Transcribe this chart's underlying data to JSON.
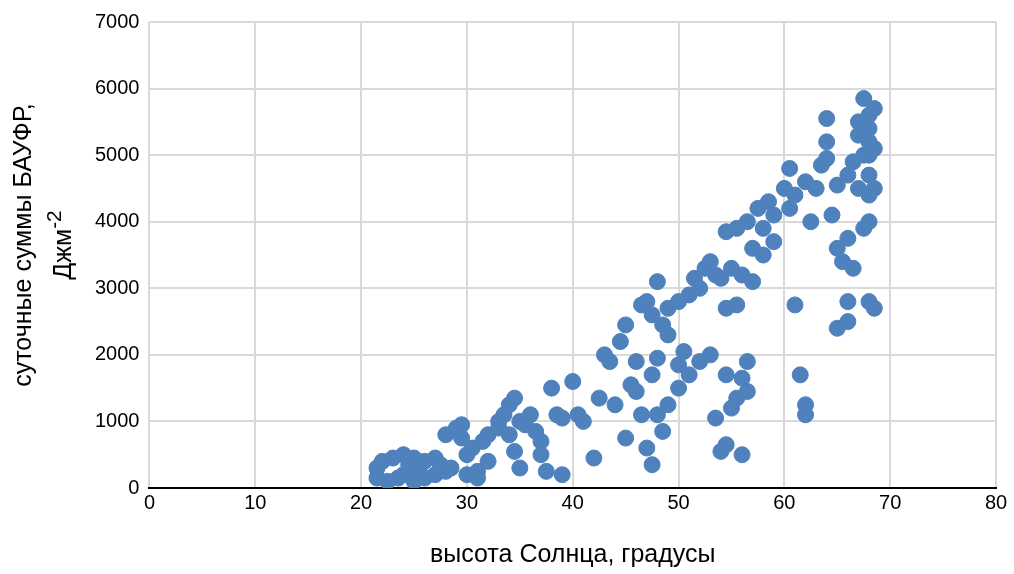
{
  "chart_data": {
    "type": "scatter",
    "xlabel": "высота Солнца, градусы",
    "ylabel": "суточные суммы БАУФР, Джм$^{-2}$",
    "xlim": [
      0,
      80
    ],
    "xticks": [
      0,
      10,
      20,
      30,
      40,
      50,
      60,
      70,
      80
    ],
    "ylim": [
      0,
      7000
    ],
    "yticks": [
      0,
      1000,
      2000,
      3000,
      4000,
      5000,
      6000,
      7000
    ],
    "grid": true,
    "legend": false,
    "marker": "circle",
    "series": [
      {
        "color": "#4f81bd",
        "x": [
          21.5,
          21.5,
          22,
          22.5,
          23,
          23.5,
          24,
          24,
          24.5,
          25,
          25,
          25.5,
          26,
          26,
          27,
          27,
          27.5,
          28,
          28,
          28.5,
          29,
          29.5,
          29.5,
          30,
          30,
          30.5,
          31,
          31,
          31.5,
          32,
          32,
          33,
          33,
          33.5,
          34,
          34.5,
          34,
          34.5,
          35,
          35.5,
          35,
          36,
          36.5,
          37,
          37,
          37.5,
          38,
          38.5,
          39,
          39,
          40,
          40.5,
          41,
          42,
          42.5,
          43,
          43.5,
          44,
          44.5,
          45,
          45,
          45.5,
          46,
          46,
          46.5,
          46.5,
          47,
          47,
          47.5,
          47.5,
          47.5,
          48,
          48,
          48,
          48.5,
          48.5,
          49,
          49,
          49,
          50,
          50,
          50,
          50.5,
          51,
          51,
          51.5,
          52,
          52,
          52.5,
          53,
          53,
          53.5,
          53.5,
          54,
          54,
          54.5,
          54.5,
          54.5,
          54.5,
          55,
          55,
          55.5,
          55.5,
          55.5,
          56,
          56,
          56,
          56.5,
          56.5,
          56.5,
          57,
          57,
          57.5,
          58,
          58,
          58.5,
          59,
          59,
          60,
          60.5,
          60.5,
          61,
          61,
          61.5,
          62,
          62,
          62,
          62.5,
          63,
          63.5,
          64,
          64,
          64,
          64.5,
          65,
          65,
          65,
          65.5,
          66,
          66,
          66,
          66,
          66.5,
          66.5,
          67,
          67,
          67,
          67.5,
          67.5,
          68,
          68,
          68,
          68,
          68,
          68,
          68,
          68.5,
          68.5,
          68.5,
          68.5,
          67.5,
          68
        ],
        "values": [
          150,
          300,
          400,
          100,
          450,
          150,
          500,
          200,
          350,
          100,
          450,
          250,
          400,
          150,
          200,
          450,
          350,
          250,
          800,
          300,
          900,
          950,
          750,
          200,
          500,
          600,
          250,
          150,
          700,
          400,
          800,
          900,
          1000,
          1100,
          1250,
          1350,
          800,
          550,
          1000,
          950,
          300,
          1100,
          850,
          700,
          500,
          250,
          1500,
          1100,
          200,
          1050,
          1600,
          1100,
          1000,
          450,
          1350,
          2000,
          1900,
          1250,
          2200,
          2450,
          750,
          1550,
          1900,
          1450,
          2750,
          1100,
          2800,
          600,
          2600,
          1700,
          350,
          3100,
          1100,
          1950,
          2450,
          850,
          2700,
          1250,
          2300,
          2800,
          1500,
          1850,
          2050,
          2900,
          1700,
          3150,
          3000,
          1900,
          3300,
          3400,
          2000,
          3200,
          1050,
          3150,
          550,
          3850,
          2700,
          650,
          1700,
          3300,
          1200,
          3900,
          2750,
          1350,
          3200,
          1650,
          500,
          4000,
          1900,
          1450,
          3100,
          3600,
          4200,
          3500,
          3900,
          4300,
          3700,
          4100,
          4500,
          4800,
          4200,
          4400,
          2750,
          1700,
          4600,
          1250,
          1100,
          4000,
          4500,
          4850,
          5550,
          4950,
          5200,
          4100,
          3600,
          4550,
          2400,
          3400,
          4700,
          3750,
          2500,
          2800,
          3300,
          4900,
          5300,
          5500,
          4500,
          5000,
          5850,
          5600,
          5400,
          5200,
          4700,
          4400,
          4000,
          2800,
          5700,
          5100,
          4500,
          2700,
          3900,
          5000
        ]
      }
    ]
  }
}
